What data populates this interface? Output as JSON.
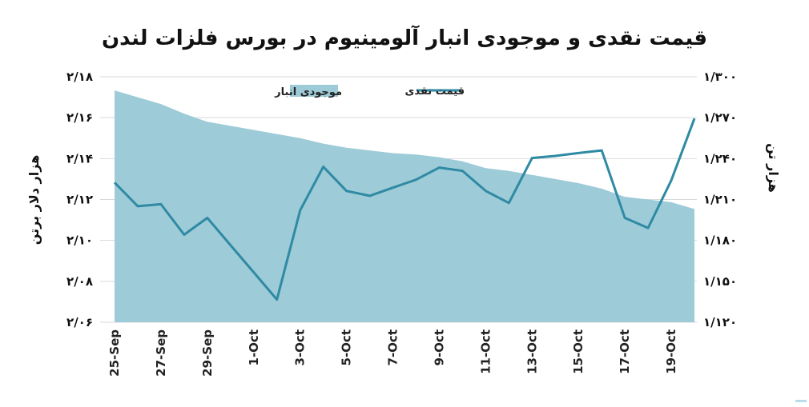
{
  "chart_data": {
    "type": "line",
    "title": "قیمت نقدی و موجودی انبار آلومینیوم در بورس فلزات لندن",
    "ylabel_left": "هزار دلار برتن",
    "ylabel_right": "هزار تن",
    "left_axis": {
      "ticks": [
        "۲/۰۶",
        "۲/۰۸",
        "۲/۱۰",
        "۲/۱۲",
        "۲/۱۴",
        "۲/۱۶",
        "۲/۱۸"
      ],
      "ylim": [
        2.06,
        2.18
      ]
    },
    "right_axis": {
      "ticks": [
        "۱/۱۲۰",
        "۱/۱۵۰",
        "۱/۱۸۰",
        "۱/۲۱۰",
        "۱/۲۴۰",
        "۱/۲۷۰",
        "۱/۳۰۰"
      ],
      "ylim": [
        1120,
        1300
      ]
    },
    "x": [
      "25-Sep",
      "26-Sep",
      "27-Sep",
      "28-Sep",
      "29-Sep",
      "30-Sep",
      "1-Oct",
      "2-Oct",
      "3-Oct",
      "4-Oct",
      "5-Oct",
      "6-Oct",
      "7-Oct",
      "8-Oct",
      "9-Oct",
      "10-Oct",
      "11-Oct",
      "12-Oct",
      "13-Oct",
      "14-Oct",
      "15-Oct",
      "16-Oct",
      "17-Oct",
      "18-Oct",
      "19-Oct",
      "20-Oct"
    ],
    "x_tick_labels": [
      "25-Sep",
      "27-Sep",
      "29-Sep",
      "1-Oct",
      "3-Oct",
      "5-Oct",
      "7-Oct",
      "9-Oct",
      "11-Oct",
      "13-Oct",
      "15-Oct",
      "17-Oct",
      "19-Oct"
    ],
    "series": [
      {
        "name": "موجودی انبار",
        "type": "area",
        "axis": "right",
        "color": "#9ecbd8",
        "values": [
          1290,
          1285,
          1280,
          1273,
          1267,
          1264,
          1261,
          1258,
          1255,
          1251,
          1248,
          1246,
          1244,
          1243,
          1241,
          1238,
          1233,
          1231,
          1228,
          1225,
          1222,
          1218,
          1212,
          1210,
          1208,
          1203
        ]
      },
      {
        "name": "قیمت نقدی",
        "type": "line",
        "axis": "left",
        "color": "#2f8aa3",
        "values": [
          2.1283,
          2.1167,
          2.1177,
          2.1028,
          2.111,
          2.0977,
          2.0844,
          2.0711,
          2.1147,
          2.136,
          2.1242,
          2.1218,
          2.1258,
          2.1297,
          2.1356,
          2.134,
          2.1242,
          2.1183,
          2.1403,
          2.1413,
          2.1427,
          2.144,
          2.111,
          2.1061,
          2.1293,
          2.1596
        ]
      }
    ],
    "legend": "top-center",
    "grid": "horizontal"
  }
}
